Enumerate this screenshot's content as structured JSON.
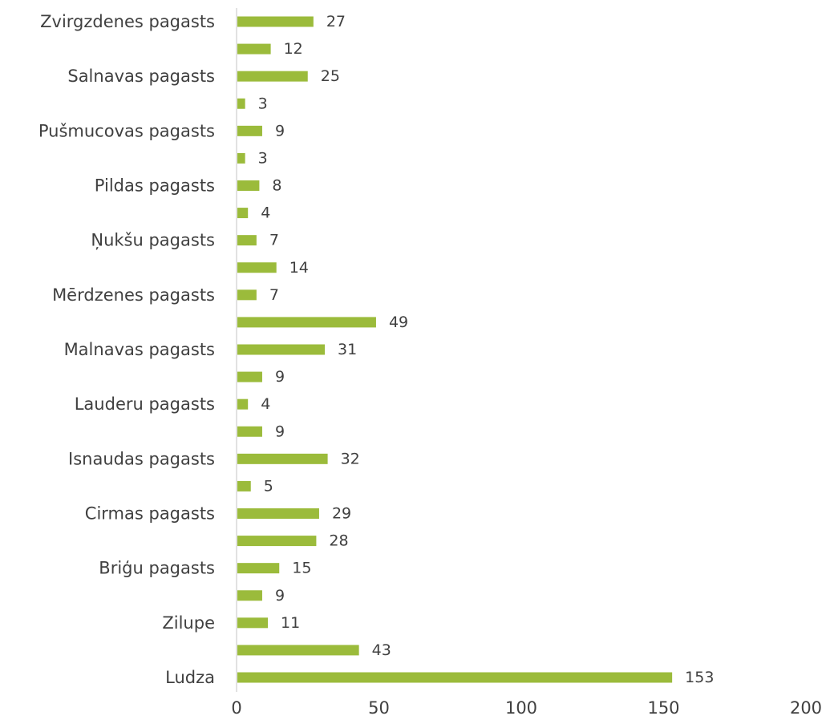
{
  "chart_data": {
    "type": "bar",
    "orientation": "horizontal",
    "title": "",
    "xlabel": "",
    "ylabel": "",
    "xlim": [
      0,
      200
    ],
    "xticks": [
      0,
      50,
      100,
      150,
      200
    ],
    "grid": false,
    "bar_color": "#9bbb3b",
    "categories_bottom_to_top": [
      "Ludza",
      "",
      "Zilupe",
      "",
      "Briģu pagasts",
      "",
      "Cirmas pagasts",
      "",
      "Isnaudas pagasts",
      "",
      "Lauderu pagasts",
      "",
      "Malnavas pagasts",
      "",
      "Mērdzenes pagasts",
      "",
      "Ņukšu pagasts",
      "",
      "Pildas pagasts",
      "",
      "Pušmucovas pagasts",
      "",
      "Salnavas pagasts",
      "",
      "Zvirgzdenes pagasts"
    ],
    "values_bottom_to_top": [
      153,
      43,
      11,
      9,
      15,
      28,
      29,
      5,
      32,
      9,
      4,
      9,
      31,
      49,
      7,
      14,
      7,
      4,
      8,
      3,
      9,
      3,
      25,
      12,
      27
    ]
  }
}
